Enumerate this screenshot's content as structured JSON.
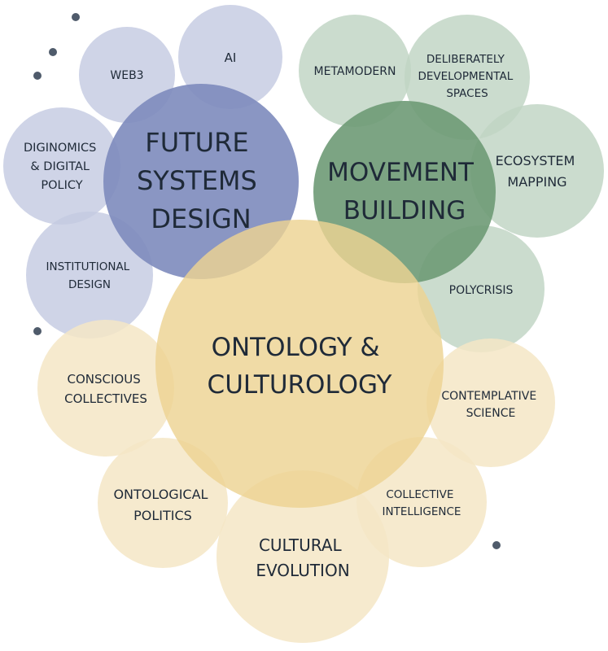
{
  "palette": {
    "blue_main": "#7d8bbd",
    "blue_satellite": "#c3c9e1",
    "green_main": "#6e9a76",
    "green_satellite": "#c0d4c3",
    "gold_main": "#edd392",
    "gold_satellite": "#f5e6c6",
    "dot": "#4f5b6b",
    "text": "#1f2a38"
  },
  "clusters": {
    "future_systems": {
      "title": [
        "FUTURE",
        "SYSTEMS",
        "DESIGN"
      ],
      "satellites": {
        "web3": [
          "WEB3"
        ],
        "ai": [
          "AI"
        ],
        "diginomics": [
          "DIGINOMICS",
          "& DIGITAL",
          "POLICY"
        ],
        "institutional": [
          "INSTITUTIONAL",
          "DESIGN"
        ]
      }
    },
    "movement_building": {
      "title": [
        "MOVEMENT",
        "BUILDING"
      ],
      "satellites": {
        "metamodern": [
          "METAMODERN"
        ],
        "deliberately": [
          "DELIBERATELY",
          "DEVELOPMENTAL",
          "SPACES"
        ],
        "ecosystem": [
          "ECOSYSTEM",
          "MAPPING"
        ],
        "polycrisis": [
          "POLYCRISIS"
        ]
      }
    },
    "ontology": {
      "title": [
        "ONTOLOGY &",
        "CULTUROLOGY"
      ],
      "satellites": {
        "conscious": [
          "CONSCIOUS",
          "COLLECTIVES"
        ],
        "contemplative": [
          "CONTEMPLATIVE",
          "SCIENCE"
        ],
        "ontological_politics": [
          "ONTOLOGICAL",
          "POLITICS"
        ],
        "collective_intelligence": [
          "COLLECTIVE",
          "INTELLIGENCE"
        ],
        "cultural_evolution": [
          "CULTURAL",
          "EVOLUTION"
        ]
      }
    }
  }
}
